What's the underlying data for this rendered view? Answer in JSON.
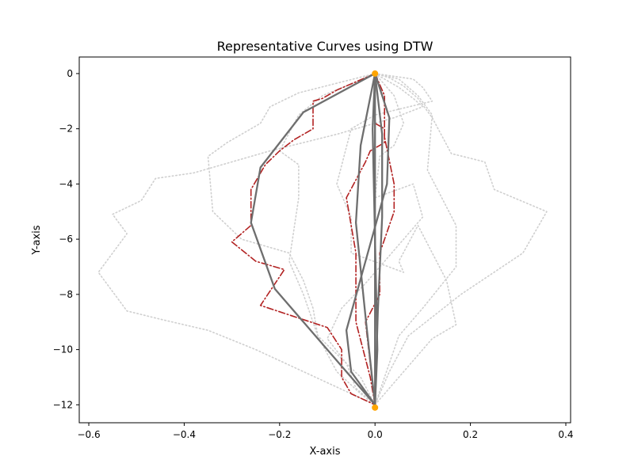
{
  "chart_data": {
    "type": "line",
    "title": "Representative Curves using DTW",
    "xlabel": "X-axis",
    "ylabel": "Y-axis",
    "xlim": [
      -0.62,
      0.41
    ],
    "ylim": [
      -12.65,
      0.6
    ],
    "xticks": [
      -0.6,
      -0.4,
      -0.2,
      0.0,
      0.2,
      0.4
    ],
    "xtick_labels": [
      "−0.6",
      "−0.4",
      "−0.2",
      "0.0",
      "0.2",
      "0.4"
    ],
    "yticks": [
      0,
      -2,
      -4,
      -6,
      -8,
      -10,
      -12
    ],
    "ytick_labels": [
      "0",
      "−2",
      "−4",
      "−6",
      "−8",
      "−10",
      "−12"
    ],
    "grid": false,
    "legend": "none",
    "colors": {
      "background_curve": "#cfcfcf",
      "dtw_curve": "#b22222",
      "representative_curve": "#6e6e6e",
      "endpoint": "#ffa500"
    },
    "background_series": [
      {
        "x": [
          0,
          0.05,
          0.08,
          0.1,
          0.04,
          0.0,
          -0.08,
          -0.22,
          -0.3,
          -0.38,
          -0.46,
          -0.49,
          -0.55,
          -0.52,
          -0.58,
          -0.52,
          -0.45,
          -0.35,
          -0.25,
          -0.1,
          0.0
        ],
        "y": [
          0,
          -0.5,
          -0.9,
          -1.2,
          -1.6,
          -1.8,
          -2.2,
          -2.8,
          -3.2,
          -3.6,
          -3.8,
          -4.6,
          -5.1,
          -5.8,
          -7.2,
          -8.6,
          -8.9,
          -9.3,
          -10.0,
          -11.2,
          -12.0
        ]
      },
      {
        "x": [
          0,
          -0.08,
          -0.16,
          -0.22,
          -0.24,
          -0.31,
          -0.35,
          -0.34,
          -0.28,
          -0.18,
          -0.15,
          -0.13,
          -0.12,
          -0.03,
          0.0
        ],
        "y": [
          0,
          -0.35,
          -0.7,
          -1.2,
          -1.8,
          -2.5,
          -3.0,
          -5.0,
          -6.0,
          -6.5,
          -7.5,
          -8.5,
          -9.5,
          -11.0,
          -12.0
        ]
      },
      {
        "x": [
          0,
          -0.04,
          -0.11,
          -0.16,
          -0.2,
          -0.16,
          -0.16,
          -0.18,
          -0.15,
          -0.12,
          -0.08,
          -0.03,
          0.0
        ],
        "y": [
          0,
          -0.3,
          -0.8,
          -1.5,
          -2.8,
          -3.3,
          -4.5,
          -6.8,
          -8.0,
          -9.5,
          -10.8,
          -11.6,
          -12.0
        ]
      },
      {
        "x": [
          0,
          0.03,
          0.06,
          0.09,
          0.12,
          0.16,
          0.23,
          0.25,
          0.36,
          0.31,
          0.18,
          0.07,
          0.03,
          0.0
        ],
        "y": [
          0,
          -0.15,
          -0.45,
          -0.9,
          -1.6,
          -2.9,
          -3.2,
          -4.2,
          -5.0,
          -6.5,
          -8.0,
          -9.5,
          -10.8,
          -12.0
        ]
      },
      {
        "x": [
          0,
          0.05,
          0.09,
          0.12,
          0.11,
          0.17,
          0.17,
          0.1,
          0.05,
          0.02,
          0.0
        ],
        "y": [
          0,
          -0.2,
          -0.8,
          -1.5,
          -3.5,
          -5.5,
          -7.0,
          -8.5,
          -9.5,
          -11.0,
          -12.0
        ]
      },
      {
        "x": [
          0,
          0.08,
          0.1,
          0.12,
          0.0,
          -0.05,
          -0.08,
          -0.05,
          -0.05,
          0.06,
          0.05,
          0.09,
          0.15,
          0.17,
          0.12,
          0.05,
          0.0
        ],
        "y": [
          0,
          -0.2,
          -0.5,
          -1.0,
          -1.5,
          -2.0,
          -4.0,
          -5.2,
          -6.5,
          -7.2,
          -6.8,
          -5.5,
          -7.5,
          -9.1,
          -9.6,
          -11.0,
          -12.0
        ]
      },
      {
        "x": [
          0,
          0.04,
          0.06,
          0.04,
          0.01,
          0.0,
          0.08,
          0.1,
          0.04,
          -0.02,
          -0.07,
          -0.1,
          -0.06,
          -0.04,
          0.0
        ],
        "y": [
          0,
          -0.8,
          -1.8,
          -2.6,
          -3.0,
          -4.5,
          -4.0,
          -5.2,
          -6.4,
          -7.6,
          -8.5,
          -9.6,
          -10.5,
          -11.4,
          -12.0
        ]
      }
    ],
    "dtw_series": [
      {
        "x": [
          0,
          -0.04,
          -0.08,
          -0.11,
          -0.13,
          -0.13,
          -0.17,
          -0.2,
          -0.23,
          -0.26,
          -0.26,
          -0.3,
          -0.25,
          -0.19,
          -0.24,
          -0.1,
          -0.07,
          -0.07,
          -0.05,
          0.0
        ],
        "y": [
          0,
          -0.3,
          -0.6,
          -0.9,
          -1.0,
          -2.0,
          -2.4,
          -2.8,
          -3.3,
          -4.2,
          -5.5,
          -6.1,
          -6.8,
          -7.1,
          -8.4,
          -9.2,
          -10.0,
          -11.0,
          -11.6,
          -12.0
        ]
      },
      {
        "x": [
          0,
          0.02,
          0.02,
          -0.01,
          -0.02,
          -0.06,
          -0.04,
          -0.04,
          -0.01,
          0.0
        ],
        "y": [
          0,
          -0.8,
          -2.5,
          -2.8,
          -3.2,
          -4.5,
          -6.5,
          -9.0,
          -11.0,
          -12.0
        ]
      },
      {
        "x": [
          0,
          0.0,
          0.02,
          0.02,
          0.04,
          0.04,
          0.01,
          0.01,
          -0.02,
          0.0
        ],
        "y": [
          0,
          -1.8,
          -2.0,
          -2.3,
          -4.0,
          -5.0,
          -6.5,
          -8.0,
          -9.0,
          -12.0
        ]
      }
    ],
    "representative_series": [
      {
        "x": [
          0,
          -0.15,
          -0.24,
          -0.26,
          -0.21,
          -0.1,
          0.0
        ],
        "y": [
          0,
          -1.4,
          -3.4,
          -5.4,
          -7.8,
          -10.0,
          -12.0
        ]
      },
      {
        "x": [
          0,
          -0.03,
          -0.04,
          -0.02,
          0.0
        ],
        "y": [
          0,
          -2.6,
          -5.4,
          -8.8,
          -12.0
        ]
      },
      {
        "x": [
          0,
          0.015,
          0.015,
          0.006,
          0.0
        ],
        "y": [
          0,
          -2.2,
          -5.2,
          -8.6,
          -12.0
        ]
      },
      {
        "x": [
          0,
          0.03,
          0.025,
          -0.02,
          -0.06,
          -0.05,
          0.0
        ],
        "y": [
          0,
          -1.6,
          -4.0,
          -6.8,
          -9.3,
          -10.8,
          -12.0
        ]
      },
      {
        "x": [
          0,
          0.0,
          0.0
        ],
        "y": [
          0,
          -6.0,
          -12.0
        ]
      },
      {
        "x": [
          0,
          -0.005,
          0.0,
          0.005,
          0.0
        ],
        "y": [
          0,
          -2.0,
          -6.0,
          -10.0,
          -12.0
        ]
      }
    ],
    "endpoints": [
      {
        "x": 0.0,
        "y": 0.0
      },
      {
        "x": 0.0,
        "y": -12.1
      }
    ]
  }
}
